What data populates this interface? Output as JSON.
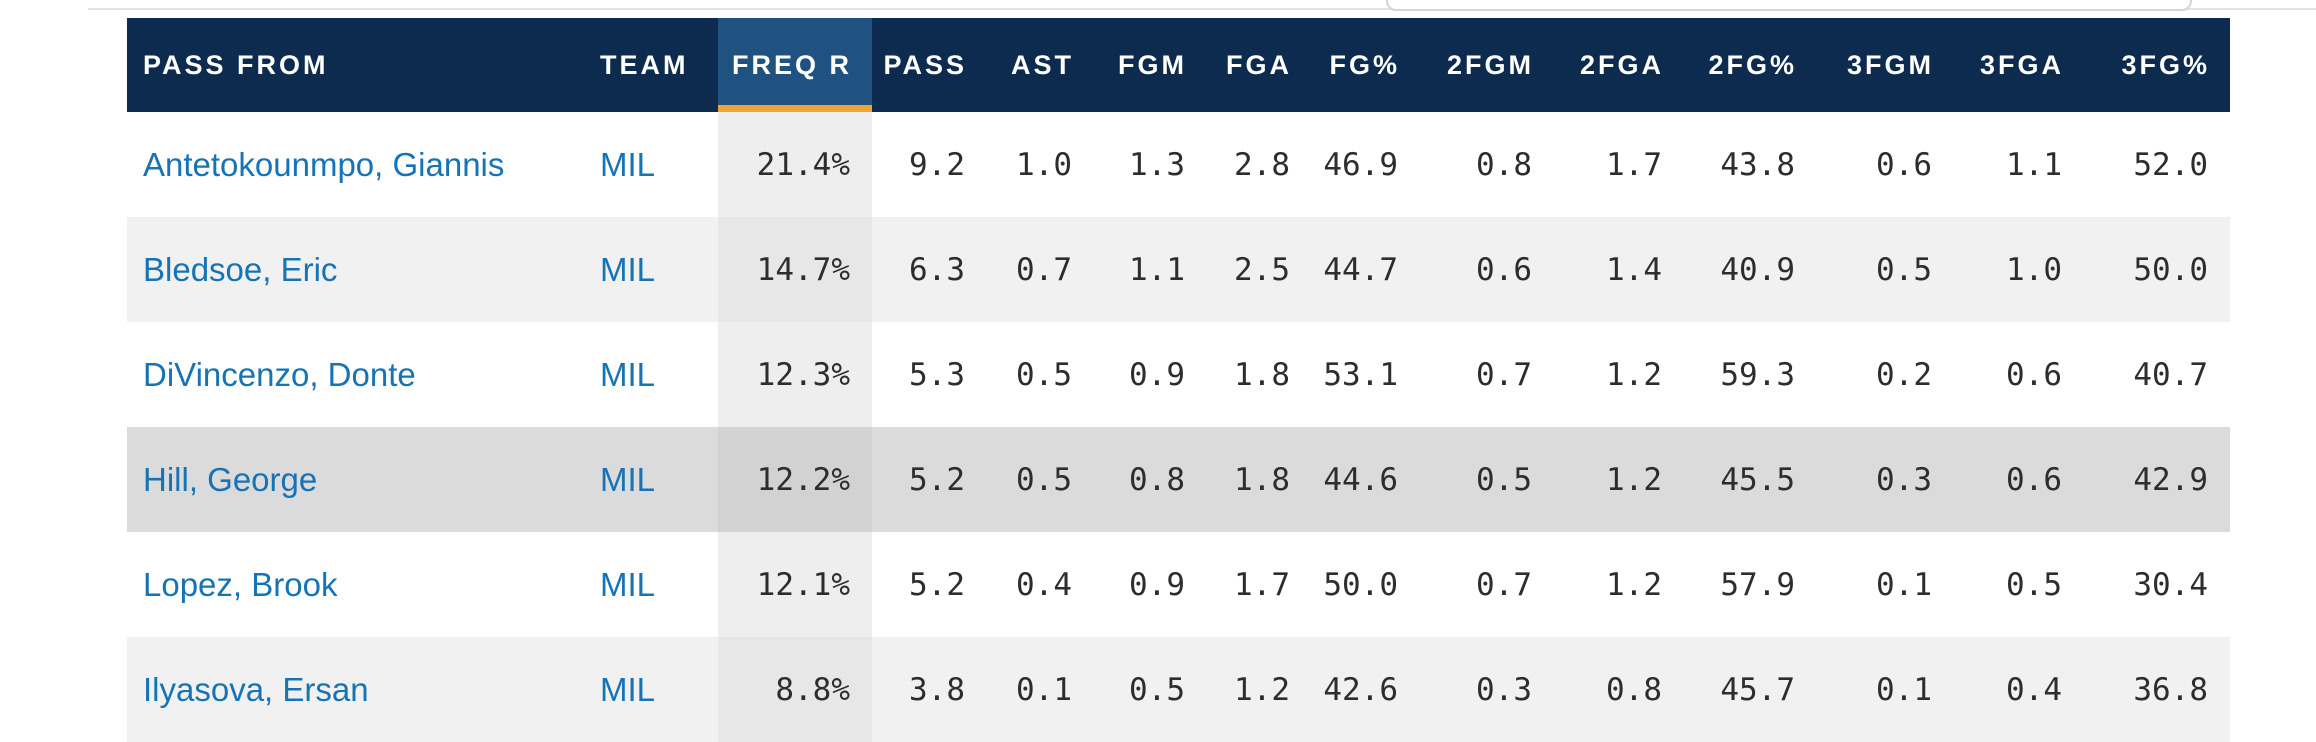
{
  "colors": {
    "header_navy": "#0c2b4f",
    "sorted_header_blue": "#1f5280",
    "sort_accent_orange": "#f0a431",
    "link_blue": "#1673b5",
    "row_alt_gray": "#f1f1f1",
    "row_highlight_gray": "#dbdbdb"
  },
  "table": {
    "columns": [
      {
        "key": "pass-from",
        "label": "PASS FROM",
        "align": "left",
        "link": "player",
        "sorted": false
      },
      {
        "key": "team",
        "label": "TEAM",
        "align": "left",
        "link": "team",
        "sorted": false
      },
      {
        "key": "freq-r",
        "label": "FREQ R",
        "align": "right",
        "link": null,
        "sorted": true
      },
      {
        "key": "pass",
        "label": "PASS",
        "align": "right",
        "link": null,
        "sorted": false
      },
      {
        "key": "ast",
        "label": "AST",
        "align": "right",
        "link": null,
        "sorted": false
      },
      {
        "key": "fgm",
        "label": "FGM",
        "align": "right",
        "link": null,
        "sorted": false
      },
      {
        "key": "fga",
        "label": "FGA",
        "align": "right",
        "link": null,
        "sorted": false
      },
      {
        "key": "fg-pct",
        "label": "FG%",
        "align": "right",
        "link": null,
        "sorted": false
      },
      {
        "key": "2fgm",
        "label": "2FGM",
        "align": "right",
        "link": null,
        "sorted": false
      },
      {
        "key": "2fga",
        "label": "2FGA",
        "align": "right",
        "link": null,
        "sorted": false
      },
      {
        "key": "2fg-pct",
        "label": "2FG%",
        "align": "right",
        "link": null,
        "sorted": false
      },
      {
        "key": "3fgm",
        "label": "3FGM",
        "align": "right",
        "link": null,
        "sorted": false
      },
      {
        "key": "3fga",
        "label": "3FGA",
        "align": "right",
        "link": null,
        "sorted": false
      },
      {
        "key": "3fg-pct",
        "label": "3FG%",
        "align": "right",
        "link": null,
        "sorted": false
      }
    ],
    "rows": [
      {
        "highlight": false,
        "cells": [
          "Antetokounmpo, Giannis",
          "MIL",
          "21.4%",
          "9.2",
          "1.0",
          "1.3",
          "2.8",
          "46.9",
          "0.8",
          "1.7",
          "43.8",
          "0.6",
          "1.1",
          "52.0"
        ]
      },
      {
        "highlight": false,
        "cells": [
          "Bledsoe, Eric",
          "MIL",
          "14.7%",
          "6.3",
          "0.7",
          "1.1",
          "2.5",
          "44.7",
          "0.6",
          "1.4",
          "40.9",
          "0.5",
          "1.0",
          "50.0"
        ]
      },
      {
        "highlight": false,
        "cells": [
          "DiVincenzo, Donte",
          "MIL",
          "12.3%",
          "5.3",
          "0.5",
          "0.9",
          "1.8",
          "53.1",
          "0.7",
          "1.2",
          "59.3",
          "0.2",
          "0.6",
          "40.7"
        ]
      },
      {
        "highlight": true,
        "cells": [
          "Hill, George",
          "MIL",
          "12.2%",
          "5.2",
          "0.5",
          "0.8",
          "1.8",
          "44.6",
          "0.5",
          "1.2",
          "45.5",
          "0.3",
          "0.6",
          "42.9"
        ]
      },
      {
        "highlight": false,
        "cells": [
          "Lopez, Brook",
          "MIL",
          "12.1%",
          "5.2",
          "0.4",
          "0.9",
          "1.7",
          "50.0",
          "0.7",
          "1.2",
          "57.9",
          "0.1",
          "0.5",
          "30.4"
        ]
      },
      {
        "highlight": false,
        "cells": [
          "Ilyasova, Ersan",
          "MIL",
          "8.8%",
          "3.8",
          "0.1",
          "0.5",
          "1.2",
          "42.6",
          "0.3",
          "0.8",
          "45.7",
          "0.1",
          "0.4",
          "36.8"
        ]
      }
    ]
  }
}
